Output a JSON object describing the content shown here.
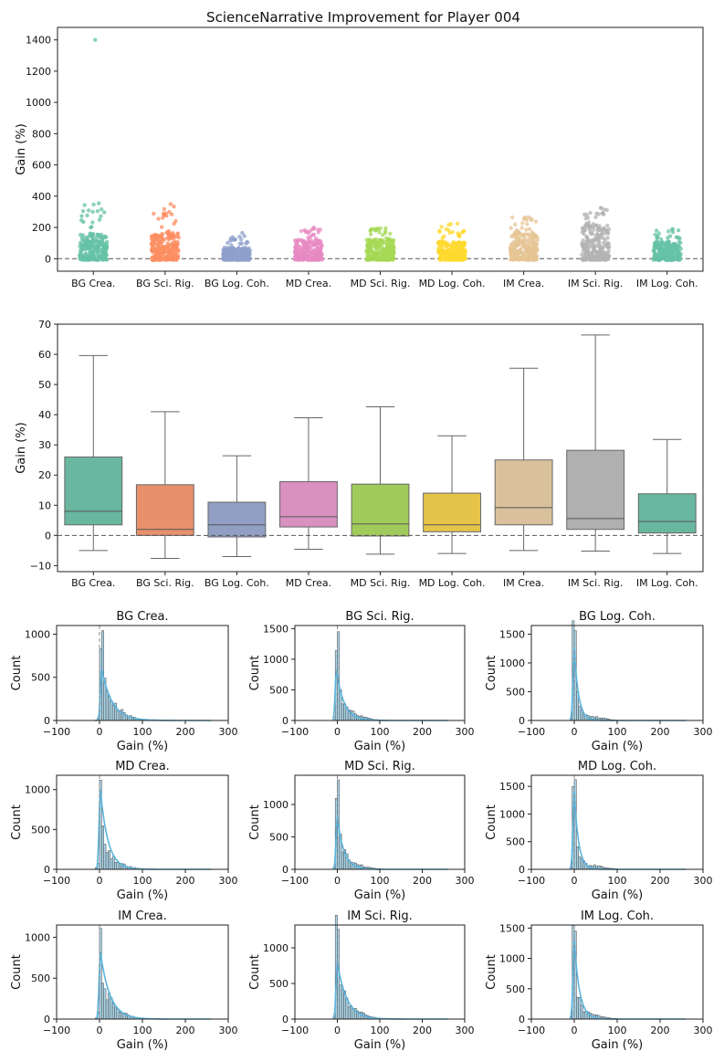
{
  "figure": {
    "title": "ScienceNarrative Improvement for Player 004"
  },
  "colors": {
    "categories": [
      "#66c2a5",
      "#fc8d62",
      "#8da0cb",
      "#e78ac3",
      "#a6d854",
      "#ffd92f",
      "#e5c494",
      "#b3b3b3",
      "#66c2a5"
    ],
    "box_fill": [
      "#6ab7a0",
      "#e8906c",
      "#919fc4",
      "#d991c0",
      "#a0cb5a",
      "#e6c44a",
      "#d9c19c",
      "#b0b0b0",
      "#6ab7a0"
    ],
    "hist_bar": "#a9d3e6",
    "kde_line": "#5ab4dc",
    "axis": "#222222",
    "zero_line": "#555555"
  },
  "chart_data": [
    {
      "id": "strip",
      "type": "scatter",
      "title": "ScienceNarrative Improvement for Player 004",
      "xlabel": "",
      "ylabel": "Gain (%)",
      "categories": [
        "BG Crea.",
        "BG Sci. Rig.",
        "BG Log. Coh.",
        "MD Crea.",
        "MD Sci. Rig.",
        "MD Log. Coh.",
        "IM Crea.",
        "IM Sci. Rig.",
        "IM Log. Coh."
      ],
      "yticks": [
        0,
        200,
        400,
        600,
        800,
        1000,
        1200,
        1400
      ],
      "ylim": [
        -80,
        1480
      ],
      "max_values": [
        355,
        350,
        165,
        200,
        195,
        225,
        265,
        325,
        190
      ],
      "p95_values": [
        160,
        165,
        70,
        120,
        125,
        110,
        170,
        220,
        110
      ],
      "outliers": [
        {
          "category": "BG Crea.",
          "value": 1400
        }
      ],
      "reference_line": 0
    },
    {
      "id": "box",
      "type": "box",
      "xlabel": "",
      "ylabel": "Gain (%)",
      "categories": [
        "BG Crea.",
        "BG Sci. Rig.",
        "BG Log. Coh.",
        "MD Crea.",
        "MD Sci. Rig.",
        "MD Log. Coh.",
        "IM Crea.",
        "IM Sci. Rig.",
        "IM Log. Coh."
      ],
      "yticks": [
        -10,
        0,
        10,
        20,
        30,
        40,
        50,
        60,
        70
      ],
      "ylim": [
        -12,
        70
      ],
      "whisker_low": [
        -5,
        -7.6,
        -7,
        -4.6,
        -6.2,
        -6,
        -5,
        -5.2,
        -6
      ],
      "q1": [
        3.5,
        0,
        -0.5,
        2.8,
        -0.2,
        1.2,
        3.5,
        2,
        0.8
      ],
      "median": [
        8,
        2,
        3.5,
        6.2,
        3.8,
        3.5,
        9.2,
        5.6,
        4.6
      ],
      "q3": [
        26,
        16.8,
        11,
        17.8,
        17,
        14,
        25,
        28.2,
        13.8
      ],
      "whisker_high": [
        59.6,
        41,
        26.4,
        39,
        42.6,
        33,
        55.4,
        66.4,
        31.8
      ],
      "reference_line": 0
    },
    {
      "id": "histograms",
      "type": "histogram",
      "xlabel": "Gain (%)",
      "ylabel": "Count",
      "xlim": [
        -100,
        300
      ],
      "xticks": [
        -100,
        0,
        100,
        200,
        300
      ],
      "panels": [
        {
          "title": "BG Crea.",
          "ymax": 1100,
          "yticks": [
            0,
            500,
            1000
          ],
          "peak": 1040,
          "peak_at": 5,
          "decay": 22,
          "kde_peak": 600
        },
        {
          "title": "BG Sci. Rig.",
          "ymax": 1550,
          "yticks": [
            0,
            500,
            1000,
            1500
          ],
          "peak": 1450,
          "peak_at": -2,
          "decay": 16,
          "kde_peak": 820
        },
        {
          "title": "BG Log. Coh.",
          "ymax": 1650,
          "yticks": [
            0,
            500,
            1000,
            1500
          ],
          "peak": 1560,
          "peak_at": 0,
          "decay": 9,
          "kde_peak": 1250
        },
        {
          "title": "MD Crea.",
          "ymax": 1180,
          "yticks": [
            0,
            500,
            1000
          ],
          "peak": 1120,
          "peak_at": 2,
          "decay": 16,
          "kde_peak": 1000
        },
        {
          "title": "MD Sci. Rig.",
          "ymax": 1450,
          "yticks": [
            0,
            500,
            1000
          ],
          "peak": 1380,
          "peak_at": 0,
          "decay": 14,
          "kde_peak": 800
        },
        {
          "title": "MD Log. Coh.",
          "ymax": 1700,
          "yticks": [
            0,
            500,
            1000,
            1500
          ],
          "peak": 1620,
          "peak_at": 0,
          "decay": 9,
          "kde_peak": 1400
        },
        {
          "title": "IM Crea.",
          "ymax": 1150,
          "yticks": [
            0,
            500,
            1000
          ],
          "peak": 1110,
          "peak_at": 2,
          "decay": 20,
          "kde_peak": 820
        },
        {
          "title": "IM Sci. Rig.",
          "ymax": 1320,
          "yticks": [
            0,
            500,
            1000
          ],
          "peak": 1260,
          "peak_at": 0,
          "decay": 20,
          "kde_peak": 800
        },
        {
          "title": "IM Log. Coh.",
          "ymax": 1550,
          "yticks": [
            0,
            500,
            1000,
            1500
          ],
          "peak": 1450,
          "peak_at": 0,
          "decay": 11,
          "kde_peak": 1300
        }
      ]
    }
  ]
}
